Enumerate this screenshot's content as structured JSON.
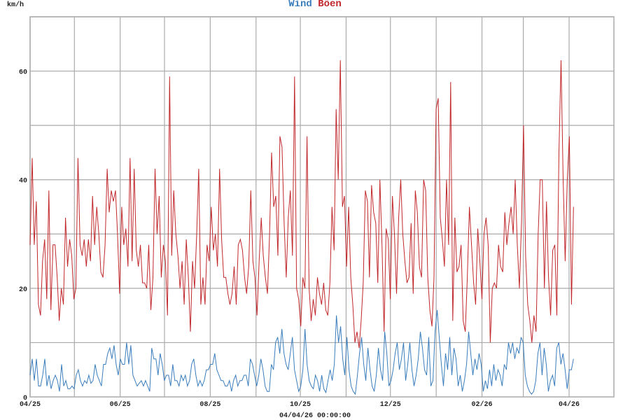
{
  "chart_data": {
    "type": "line",
    "title_parts": [
      {
        "text": "Wind",
        "color": "#3a7dbc"
      },
      {
        "text": "Böen",
        "color": "#c0282c"
      }
    ],
    "ylabel": "km/h",
    "footer": "04/04/26 00:00:00",
    "ylim": [
      0,
      70
    ],
    "grid": true,
    "y_ticks": [
      0,
      20,
      40,
      60
    ],
    "y_gridlines": [
      10,
      20,
      30,
      40,
      50,
      60,
      70
    ],
    "x_unit": "days since 2025-04-01",
    "xlim": [
      0,
      395
    ],
    "x_month_gridlines": [
      0,
      30,
      61,
      91,
      122,
      153,
      183,
      214,
      244,
      275,
      306,
      334,
      365
    ],
    "x_ticks": [
      {
        "day": 0,
        "label": "04/25"
      },
      {
        "day": 61,
        "label": "06/25"
      },
      {
        "day": 122,
        "label": "08/25"
      },
      {
        "day": 183,
        "label": "10/25"
      },
      {
        "day": 244,
        "label": "12/25"
      },
      {
        "day": 306,
        "label": "02/26"
      },
      {
        "day": 365,
        "label": "04/26"
      }
    ],
    "series": [
      {
        "name": "Böen",
        "color": "#c0282c",
        "x_range_days": [
          0,
          368
        ],
        "values": [
          28,
          44,
          28,
          36,
          17,
          15,
          25,
          29,
          18,
          38,
          16,
          28,
          28,
          22,
          14,
          20,
          17,
          33,
          24,
          29,
          26,
          18,
          20,
          44,
          28,
          26,
          29,
          24,
          29,
          25,
          37,
          28,
          35,
          30,
          23,
          22,
          28,
          42,
          34,
          38,
          36,
          38,
          30,
          19,
          35,
          28,
          31,
          24,
          44,
          25,
          42,
          27,
          24,
          28,
          21,
          21,
          20,
          28,
          16,
          22,
          42,
          30,
          37,
          22,
          28,
          25,
          15,
          59,
          26,
          38,
          30,
          26,
          20,
          25,
          17,
          29,
          22,
          12,
          25,
          20,
          30,
          42,
          17,
          22,
          17,
          28,
          25,
          35,
          27,
          30,
          24,
          42,
          29,
          22,
          22,
          19,
          17,
          19,
          24,
          17,
          28,
          29,
          27,
          22,
          19,
          24,
          38,
          25,
          22,
          15,
          25,
          33,
          26,
          22,
          19,
          30,
          45,
          35,
          37,
          26,
          48,
          46,
          32,
          22,
          33,
          38,
          26,
          59,
          20,
          18,
          13,
          22,
          20,
          48,
          20,
          14,
          18,
          15,
          22,
          19,
          17,
          21,
          16,
          15,
          21,
          35,
          27,
          53,
          40,
          62,
          35,
          37,
          24,
          35,
          22,
          17,
          10,
          12,
          9,
          14,
          21,
          38,
          36,
          22,
          39,
          34,
          32,
          21,
          40,
          28,
          12,
          31,
          29,
          18,
          37,
          30,
          19,
          33,
          40,
          30,
          25,
          21,
          22,
          32,
          19,
          38,
          34,
          24,
          22,
          40,
          38,
          22,
          16,
          13,
          22,
          53,
          55,
          33,
          29,
          24,
          40,
          28,
          58,
          14,
          33,
          23,
          24,
          28,
          14,
          12,
          22,
          35,
          28,
          21,
          17,
          31,
          25,
          18,
          30,
          33,
          28,
          10,
          20,
          21,
          20,
          28,
          24,
          23,
          34,
          28,
          32,
          35,
          30,
          40,
          28,
          20,
          32,
          50,
          26,
          17,
          14,
          10,
          15,
          12,
          30,
          40,
          40,
          20,
          36,
          22,
          15,
          27,
          28,
          15,
          45,
          62,
          40,
          25,
          40,
          48,
          17,
          35
        ]
      },
      {
        "name": "Wind",
        "color": "#3a7dbc",
        "x_range_days": [
          0,
          368
        ],
        "values": [
          4,
          7,
          3,
          7,
          2,
          2,
          4,
          7,
          2,
          4,
          1.5,
          3,
          4,
          3,
          1,
          6,
          2,
          3,
          1.5,
          1.5,
          2,
          1.5,
          4,
          5,
          3,
          2,
          3,
          2.5,
          4,
          2.5,
          3,
          6,
          4,
          3,
          2,
          6,
          6,
          8,
          9,
          7,
          9.5,
          6,
          4,
          7,
          6,
          6,
          10,
          6,
          9.5,
          4,
          3,
          2,
          2.5,
          3,
          2,
          3,
          2,
          1,
          9,
          7,
          7,
          4,
          8,
          6,
          3,
          4,
          4,
          2,
          6,
          3,
          3,
          2,
          4,
          3,
          4,
          2,
          3,
          6,
          7,
          4,
          2,
          3,
          2,
          3,
          5,
          5,
          6,
          6,
          8,
          5,
          4,
          3,
          3,
          2,
          2,
          3,
          1,
          3,
          4,
          2,
          3,
          3,
          4,
          4,
          2,
          7,
          6,
          4,
          2,
          4,
          7,
          5,
          2,
          1,
          1,
          6,
          5,
          10,
          11,
          8,
          12.5,
          8,
          6,
          5,
          8,
          11,
          5,
          3,
          1,
          2,
          5,
          12.5,
          6,
          3,
          2,
          1.5,
          4,
          3,
          1,
          4,
          1.5,
          0.8,
          3,
          5,
          3,
          6,
          15,
          10,
          13,
          7,
          4,
          11,
          5,
          2,
          1,
          0.5,
          4,
          8,
          11,
          6,
          3,
          9,
          5,
          2,
          1,
          4,
          9,
          5,
          3,
          12,
          8,
          2,
          3,
          5,
          8,
          10,
          5,
          7,
          10,
          3,
          6,
          10,
          5,
          2,
          4,
          7,
          12,
          9,
          5,
          4,
          11,
          2,
          3,
          12,
          16,
          11,
          6,
          2,
          8,
          5,
          11,
          4,
          9,
          7,
          2,
          4,
          1,
          3,
          6,
          12,
          8,
          4,
          7,
          5,
          8,
          6,
          1,
          3,
          1.5,
          5,
          2,
          6,
          3,
          5,
          4,
          2,
          6,
          5,
          10,
          8,
          10,
          7,
          9,
          8,
          11,
          10,
          4,
          2,
          1,
          0.5,
          1,
          3,
          8,
          10,
          4,
          9,
          6,
          1,
          3,
          4,
          2,
          9,
          10,
          6,
          8,
          5,
          1.5,
          5,
          5,
          7
        ]
      }
    ]
  }
}
